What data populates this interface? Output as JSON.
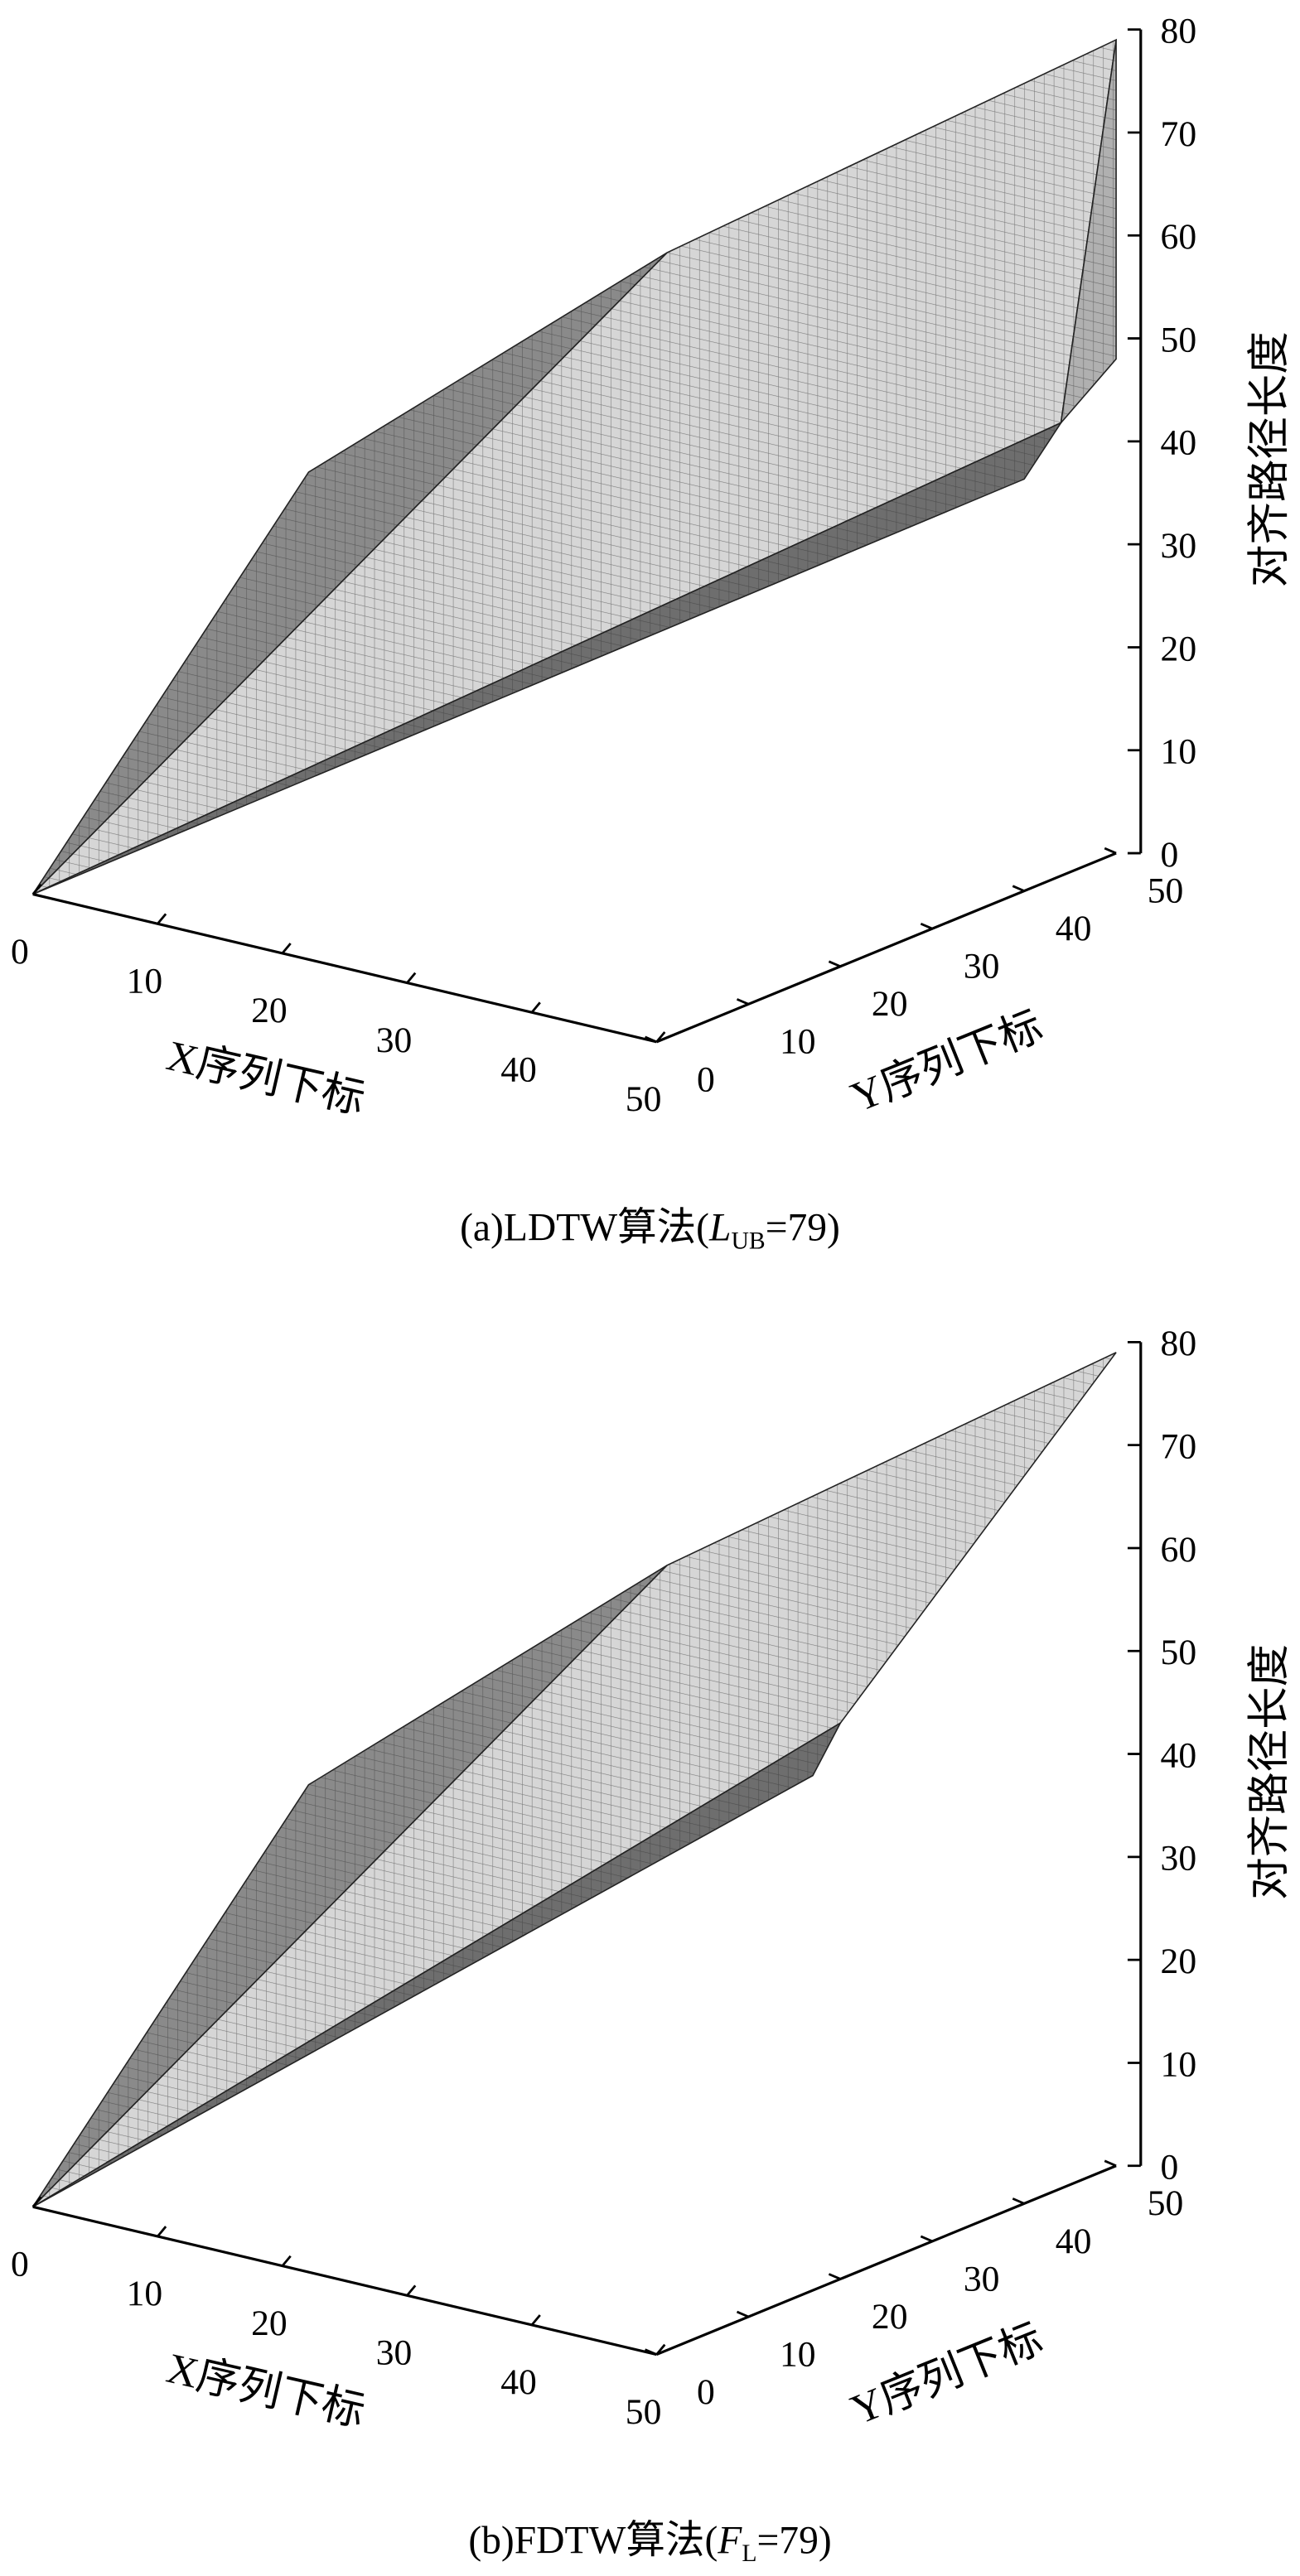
{
  "chart_data": [
    {
      "type": "bar3d",
      "caption": {
        "prefix": "(a)LDTW算法(",
        "var": "L",
        "sub": "UB",
        "suffix": "=79)"
      },
      "xlabel": "X序列下标",
      "ylabel": "Y序列下标",
      "zlabel": "对齐路径长度",
      "xlim": [
        0,
        50
      ],
      "ylim": [
        0,
        50
      ],
      "zlim": [
        0,
        80
      ],
      "xticks": [
        0,
        10,
        20,
        30,
        40,
        50
      ],
      "yticks": [
        0,
        10,
        20,
        30,
        40,
        50
      ],
      "zticks": [
        0,
        10,
        20,
        30,
        40,
        50,
        60,
        70,
        80
      ],
      "faces": [
        {
          "color": "#8a8a8a",
          "points": [
            [
              0,
              0,
              0
            ],
            [
              0,
              30,
              30
            ],
            [
              14,
              50,
              48
            ]
          ]
        },
        {
          "color": "#d6d6d6",
          "points": [
            [
              0,
              0,
              0
            ],
            [
              14,
              50,
              48
            ],
            [
              50,
              50,
              79
            ],
            [
              50,
              44,
              44
            ]
          ]
        },
        {
          "color": "#b0b0b0",
          "points": [
            [
              50,
              50,
              79
            ],
            [
              50,
              50,
              48
            ],
            [
              50,
              44,
              44
            ]
          ]
        },
        {
          "color": "#6e6e6e",
          "points": [
            [
              0,
              0,
              0
            ],
            [
              50,
              44,
              44
            ],
            [
              50,
              40,
              40
            ]
          ]
        }
      ]
    },
    {
      "type": "bar3d",
      "caption": {
        "prefix": "(b)FDTW算法(",
        "var": "F",
        "sub": "L",
        "suffix": "=79)"
      },
      "xlabel": "X序列下标",
      "ylabel": "Y序列下标",
      "zlabel": "对齐路径长度",
      "xlim": [
        0,
        50
      ],
      "ylim": [
        0,
        50
      ],
      "zlim": [
        0,
        80
      ],
      "xticks": [
        0,
        10,
        20,
        30,
        40,
        50
      ],
      "yticks": [
        0,
        10,
        20,
        30,
        40,
        50
      ],
      "zticks": [
        0,
        10,
        20,
        30,
        40,
        50,
        60,
        70,
        80
      ],
      "faces": [
        {
          "color": "#8a8a8a",
          "points": [
            [
              0,
              0,
              0
            ],
            [
              0,
              30,
              30
            ],
            [
              14,
              50,
              48
            ]
          ]
        },
        {
          "color": "#d6d6d6",
          "points": [
            [
              0,
              0,
              0
            ],
            [
              14,
              50,
              48
            ],
            [
              50,
              50,
              79
            ],
            [
              50,
              20,
              54
            ]
          ]
        },
        {
          "color": "#6e6e6e",
          "points": [
            [
              0,
              0,
              0
            ],
            [
              50,
              20,
              54
            ],
            [
              50,
              17,
              50
            ]
          ]
        }
      ]
    }
  ]
}
